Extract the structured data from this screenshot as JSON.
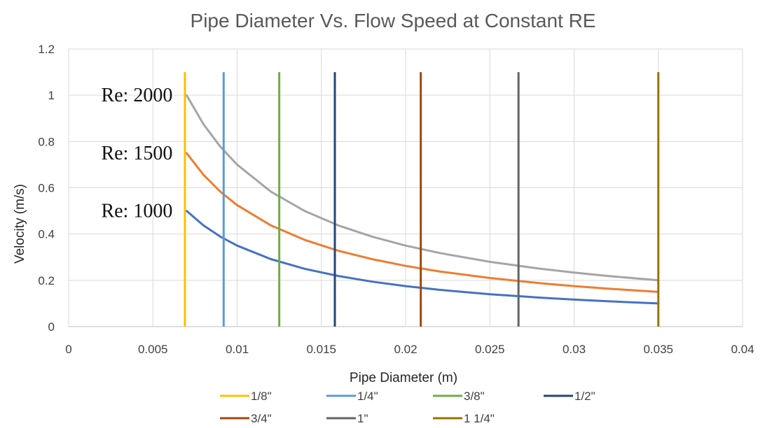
{
  "chart_data": {
    "type": "line",
    "title": "Pipe Diameter Vs. Flow Speed at Constant RE",
    "xlabel": "Pipe Diameter (m)",
    "ylabel": "Velocity (m/s)",
    "xlim": [
      0,
      0.04
    ],
    "ylim": [
      0,
      1.2
    ],
    "x_ticks": [
      0,
      0.005,
      0.01,
      0.015,
      0.02,
      0.025,
      0.03,
      0.035,
      0.04
    ],
    "x_tick_labels": [
      "0",
      "0.005",
      "0.01",
      "0.015",
      "0.02",
      "0.025",
      "0.03",
      "0.035",
      "0.04"
    ],
    "y_ticks": [
      0,
      0.2,
      0.4,
      0.6,
      0.8,
      1.0,
      1.2
    ],
    "y_tick_labels": [
      "0",
      "0.2",
      "0.4",
      "0.6",
      "0.8",
      "1",
      "1.2"
    ],
    "grid": true,
    "legend_position": "bottom",
    "curves": [
      {
        "label": "Re: 1000",
        "color": "#4472C4",
        "x": [
          0.007,
          0.008,
          0.009,
          0.01,
          0.012,
          0.014,
          0.016,
          0.018,
          0.02,
          0.022,
          0.025,
          0.028,
          0.03,
          0.032,
          0.035
        ],
        "y": [
          0.5,
          0.4375,
          0.3889,
          0.35,
          0.2917,
          0.25,
          0.2188,
          0.1944,
          0.175,
          0.1591,
          0.14,
          0.125,
          0.1167,
          0.1094,
          0.1
        ]
      },
      {
        "label": "Re: 1500",
        "color": "#ED7D31",
        "x": [
          0.007,
          0.008,
          0.009,
          0.01,
          0.012,
          0.014,
          0.016,
          0.018,
          0.02,
          0.022,
          0.025,
          0.028,
          0.03,
          0.032,
          0.035
        ],
        "y": [
          0.75,
          0.6563,
          0.5833,
          0.525,
          0.4375,
          0.375,
          0.3281,
          0.2917,
          0.2625,
          0.2386,
          0.21,
          0.1875,
          0.175,
          0.1641,
          0.15
        ]
      },
      {
        "label": "Re: 2000",
        "color": "#A5A5A5",
        "x": [
          0.007,
          0.008,
          0.009,
          0.01,
          0.012,
          0.014,
          0.016,
          0.018,
          0.02,
          0.022,
          0.025,
          0.028,
          0.03,
          0.032,
          0.035
        ],
        "y": [
          1.0,
          0.875,
          0.7778,
          0.7,
          0.5833,
          0.5,
          0.4375,
          0.3889,
          0.35,
          0.3182,
          0.28,
          0.25,
          0.2333,
          0.2188,
          0.2
        ]
      }
    ],
    "vertical_lines": [
      {
        "name": "1/8\"",
        "x": 0.0069,
        "color": "#FFC000"
      },
      {
        "name": "1/4\"",
        "x": 0.0092,
        "color": "#5B9BD5"
      },
      {
        "name": "3/8\"",
        "x": 0.0125,
        "color": "#70AD47"
      },
      {
        "name": "1/2\"",
        "x": 0.0158,
        "color": "#264478"
      },
      {
        "name": "3/4\"",
        "x": 0.0209,
        "color": "#9E480E"
      },
      {
        "name": "1\"",
        "x": 0.0267,
        "color": "#636363"
      },
      {
        "name": "1 1/4\"",
        "x": 0.035,
        "color": "#997300"
      }
    ],
    "vertical_line_range": [
      0,
      1.1
    ]
  }
}
